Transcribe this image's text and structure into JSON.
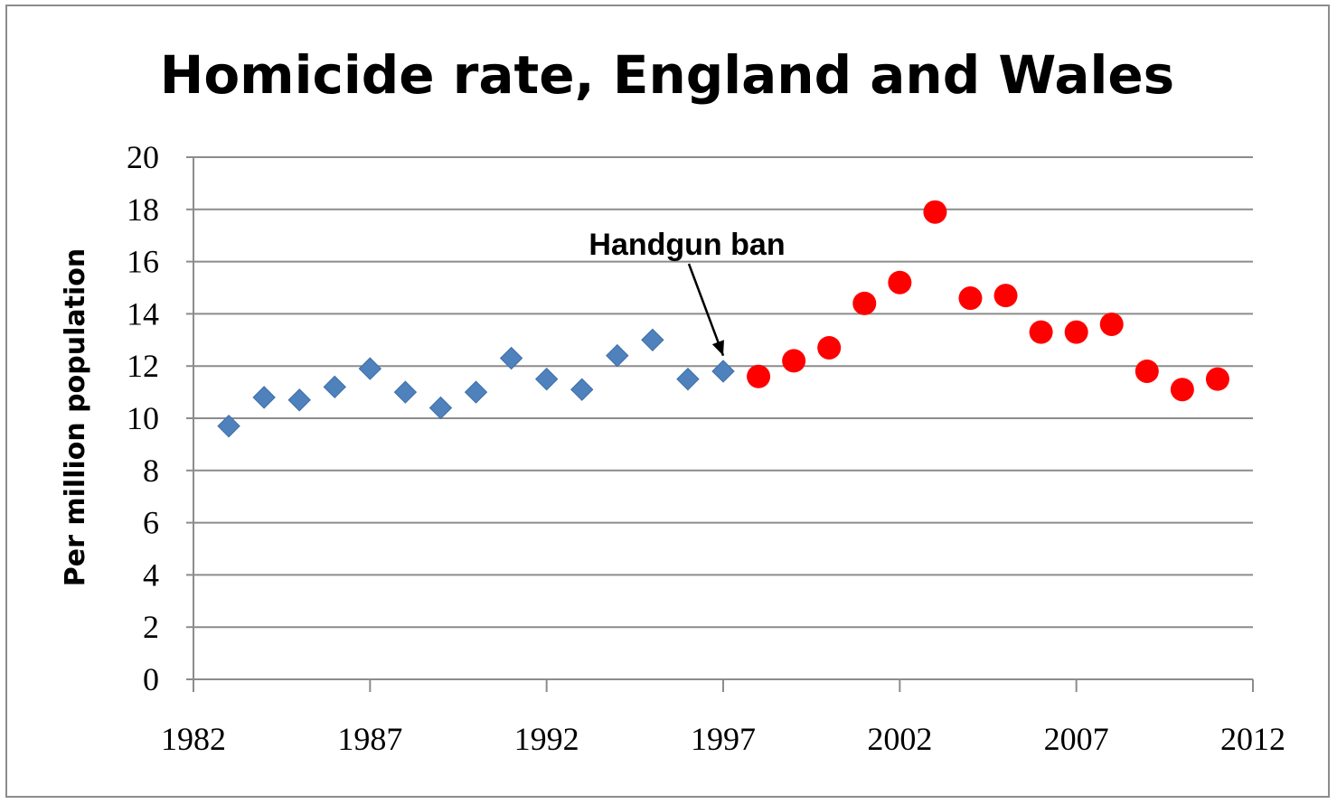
{
  "chart_data": {
    "type": "scatter",
    "title": "Homicide rate, England and Wales",
    "xlabel": "",
    "ylabel": "Per million population",
    "xlim": [
      1982,
      2012
    ],
    "ylim": [
      0,
      20
    ],
    "x_ticks": [
      1982,
      1987,
      1992,
      1997,
      2002,
      2007,
      2012
    ],
    "y_ticks": [
      0,
      2,
      4,
      6,
      8,
      10,
      12,
      14,
      16,
      18,
      20
    ],
    "grid": true,
    "legend": "none",
    "series": [
      {
        "marker": "diamond",
        "color": "#4f81bd",
        "points": [
          [
            1983,
            9.7
          ],
          [
            1984,
            10.8
          ],
          [
            1985,
            10.7
          ],
          [
            1986,
            11.2
          ],
          [
            1987,
            11.9
          ],
          [
            1988,
            11.0
          ],
          [
            1989,
            10.4
          ],
          [
            1990,
            11.0
          ],
          [
            1991,
            12.3
          ],
          [
            1992,
            11.5
          ],
          [
            1993,
            11.1
          ],
          [
            1994,
            12.4
          ],
          [
            1995,
            13.0
          ],
          [
            1996,
            11.5
          ],
          [
            1997,
            11.8
          ]
        ]
      },
      {
        "marker": "circle",
        "color": "#ff0000",
        "points": [
          [
            1998,
            11.6
          ],
          [
            1999,
            12.2
          ],
          [
            2000,
            12.7
          ],
          [
            2001,
            14.4
          ],
          [
            2002,
            15.2
          ],
          [
            2003,
            17.9
          ],
          [
            2004,
            14.6
          ],
          [
            2005,
            14.7
          ],
          [
            2006,
            13.3
          ],
          [
            2007,
            13.3
          ],
          [
            2008,
            13.6
          ],
          [
            2009,
            11.8
          ],
          [
            2010,
            11.1
          ],
          [
            2011,
            11.5
          ]
        ]
      }
    ],
    "annotations": [
      {
        "text": "Handgun ban",
        "target_x": 1997,
        "target_y": 12.4
      }
    ]
  }
}
